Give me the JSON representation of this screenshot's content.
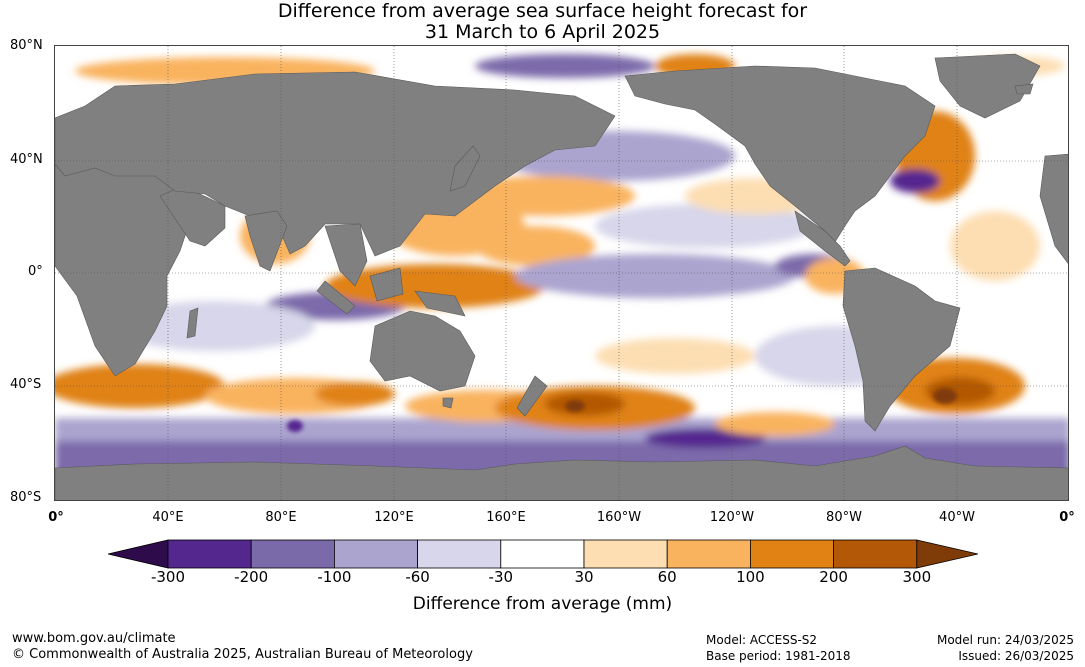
{
  "title": {
    "line1": "Difference from average sea surface height forecast for",
    "line2": "31 March to 6 April 2025"
  },
  "map": {
    "latitude_labels": [
      "80°N",
      "40°N",
      "0°",
      "40°S",
      "80°S"
    ],
    "longitude_labels": [
      "0°",
      "40°E",
      "80°E",
      "120°E",
      "160°E",
      "160°W",
      "120°W",
      "80°W",
      "40°W",
      "0°"
    ],
    "land_color": "#808080",
    "ocean_near_average_color": "#ffffff"
  },
  "legend": {
    "title": "Difference from average (mm)",
    "tick_labels": [
      "-300",
      "-200",
      "-100",
      "-60",
      "-30",
      "30",
      "60",
      "100",
      "200",
      "300"
    ],
    "colors": [
      "#2e0b4a",
      "#54278f",
      "#7b6aaa",
      "#aba4cf",
      "#d7d6ea",
      "#ffffff",
      "#fddeb2",
      "#f9b35f",
      "#e08214",
      "#b35806",
      "#7f3b08"
    ]
  },
  "footer": {
    "website": "www.bom.gov.au/climate",
    "copyright": "© Commonwealth of Australia 2025, Australian Bureau of Meteorology",
    "model": "Model: ACCESS-S2",
    "base_period": "Base period: 1981-2018",
    "model_run": "Model run: 24/03/2025",
    "issued": "Issued: 26/03/2025"
  }
}
